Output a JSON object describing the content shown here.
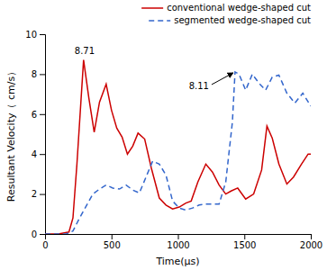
{
  "chart_data": {
    "type": "line",
    "xlabel": "Time(μs)",
    "ylabel": "Resultant Velocity（ cm/s）",
    "xlim": [
      0,
      2000
    ],
    "ylim": [
      0,
      10
    ],
    "xticks": [
      0,
      500,
      1000,
      1500,
      2000
    ],
    "yticks": [
      0,
      2,
      4,
      6,
      8,
      10
    ],
    "legend": "upper right",
    "series": [
      {
        "name": "conventional  wedge-shaped cut",
        "color": "#cc0000",
        "line_style": "solid",
        "x": [
          0,
          100,
          180,
          210,
          240,
          290,
          330,
          370,
          410,
          460,
          500,
          540,
          580,
          620,
          660,
          700,
          750,
          800,
          860,
          910,
          960,
          1010,
          1060,
          1100,
          1150,
          1210,
          1260,
          1310,
          1360,
          1400,
          1450,
          1510,
          1570,
          1630,
          1670,
          1710,
          1760,
          1820,
          1870,
          1930,
          1980,
          2000
        ],
        "values": [
          0,
          0,
          0.1,
          0.8,
          3.5,
          8.71,
          6.8,
          5.1,
          6.6,
          7.5,
          6.2,
          5.3,
          4.85,
          4.0,
          4.4,
          5.05,
          4.75,
          3.3,
          1.8,
          1.45,
          1.25,
          1.35,
          1.55,
          1.65,
          2.6,
          3.5,
          3.1,
          2.45,
          2.0,
          2.15,
          2.3,
          1.75,
          2.0,
          3.2,
          5.4,
          4.8,
          3.5,
          2.5,
          2.85,
          3.5,
          4.0,
          4.0
        ]
      },
      {
        "name": "segmented  wedge-shaped cut",
        "color": "#3366cc",
        "line_style": "dashed",
        "x": [
          0,
          160,
          210,
          260,
          310,
          360,
          410,
          460,
          510,
          560,
          610,
          660,
          710,
          760,
          810,
          860,
          910,
          960,
          1010,
          1060,
          1110,
          1160,
          1210,
          1260,
          1310,
          1360,
          1410,
          1430,
          1460,
          1510,
          1560,
          1610,
          1660,
          1710,
          1760,
          1820,
          1880,
          1940,
          2000
        ],
        "values": [
          0,
          0,
          0.15,
          0.8,
          1.4,
          2.0,
          2.25,
          2.45,
          2.3,
          2.25,
          2.45,
          2.2,
          2.05,
          2.85,
          3.65,
          3.5,
          2.95,
          1.65,
          1.3,
          1.2,
          1.3,
          1.45,
          1.5,
          1.5,
          1.5,
          2.6,
          5.6,
          8.11,
          8.0,
          7.2,
          8.0,
          7.55,
          7.2,
          7.85,
          7.95,
          7.05,
          6.55,
          7.05,
          6.4
        ]
      }
    ],
    "annotations": [
      {
        "text": "8.71",
        "x": 290,
        "y": 8.71
      },
      {
        "text": "8.11",
        "x": 1430,
        "y": 8.11
      }
    ]
  }
}
